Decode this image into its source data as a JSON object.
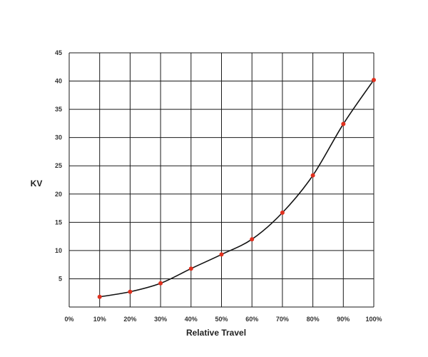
{
  "chart_data": {
    "type": "line",
    "title": "",
    "xlabel": "Relative Travel",
    "ylabel": "KV",
    "x_tick_labels": [
      "0%",
      "10%",
      "20%",
      "30%",
      "40%",
      "50%",
      "60%",
      "70%",
      "80%",
      "90%",
      "100%"
    ],
    "y_tick_labels": [
      "5",
      "10",
      "15",
      "20",
      "25",
      "30",
      "35",
      "40",
      "45"
    ],
    "xlim": [
      0,
      100
    ],
    "ylim": [
      0,
      45
    ],
    "x_unit": "%",
    "grid": true,
    "series": [
      {
        "x": [
          10,
          20,
          30,
          40,
          50,
          60,
          70,
          80,
          90,
          100
        ],
        "y": [
          1.8,
          2.7,
          4.2,
          6.8,
          9.3,
          12.0,
          16.7,
          23.3,
          32.4,
          40.2
        ]
      }
    ],
    "colors": {
      "line": "#111111",
      "marker": "#e0301e",
      "grid": "#1a1a1a"
    }
  }
}
